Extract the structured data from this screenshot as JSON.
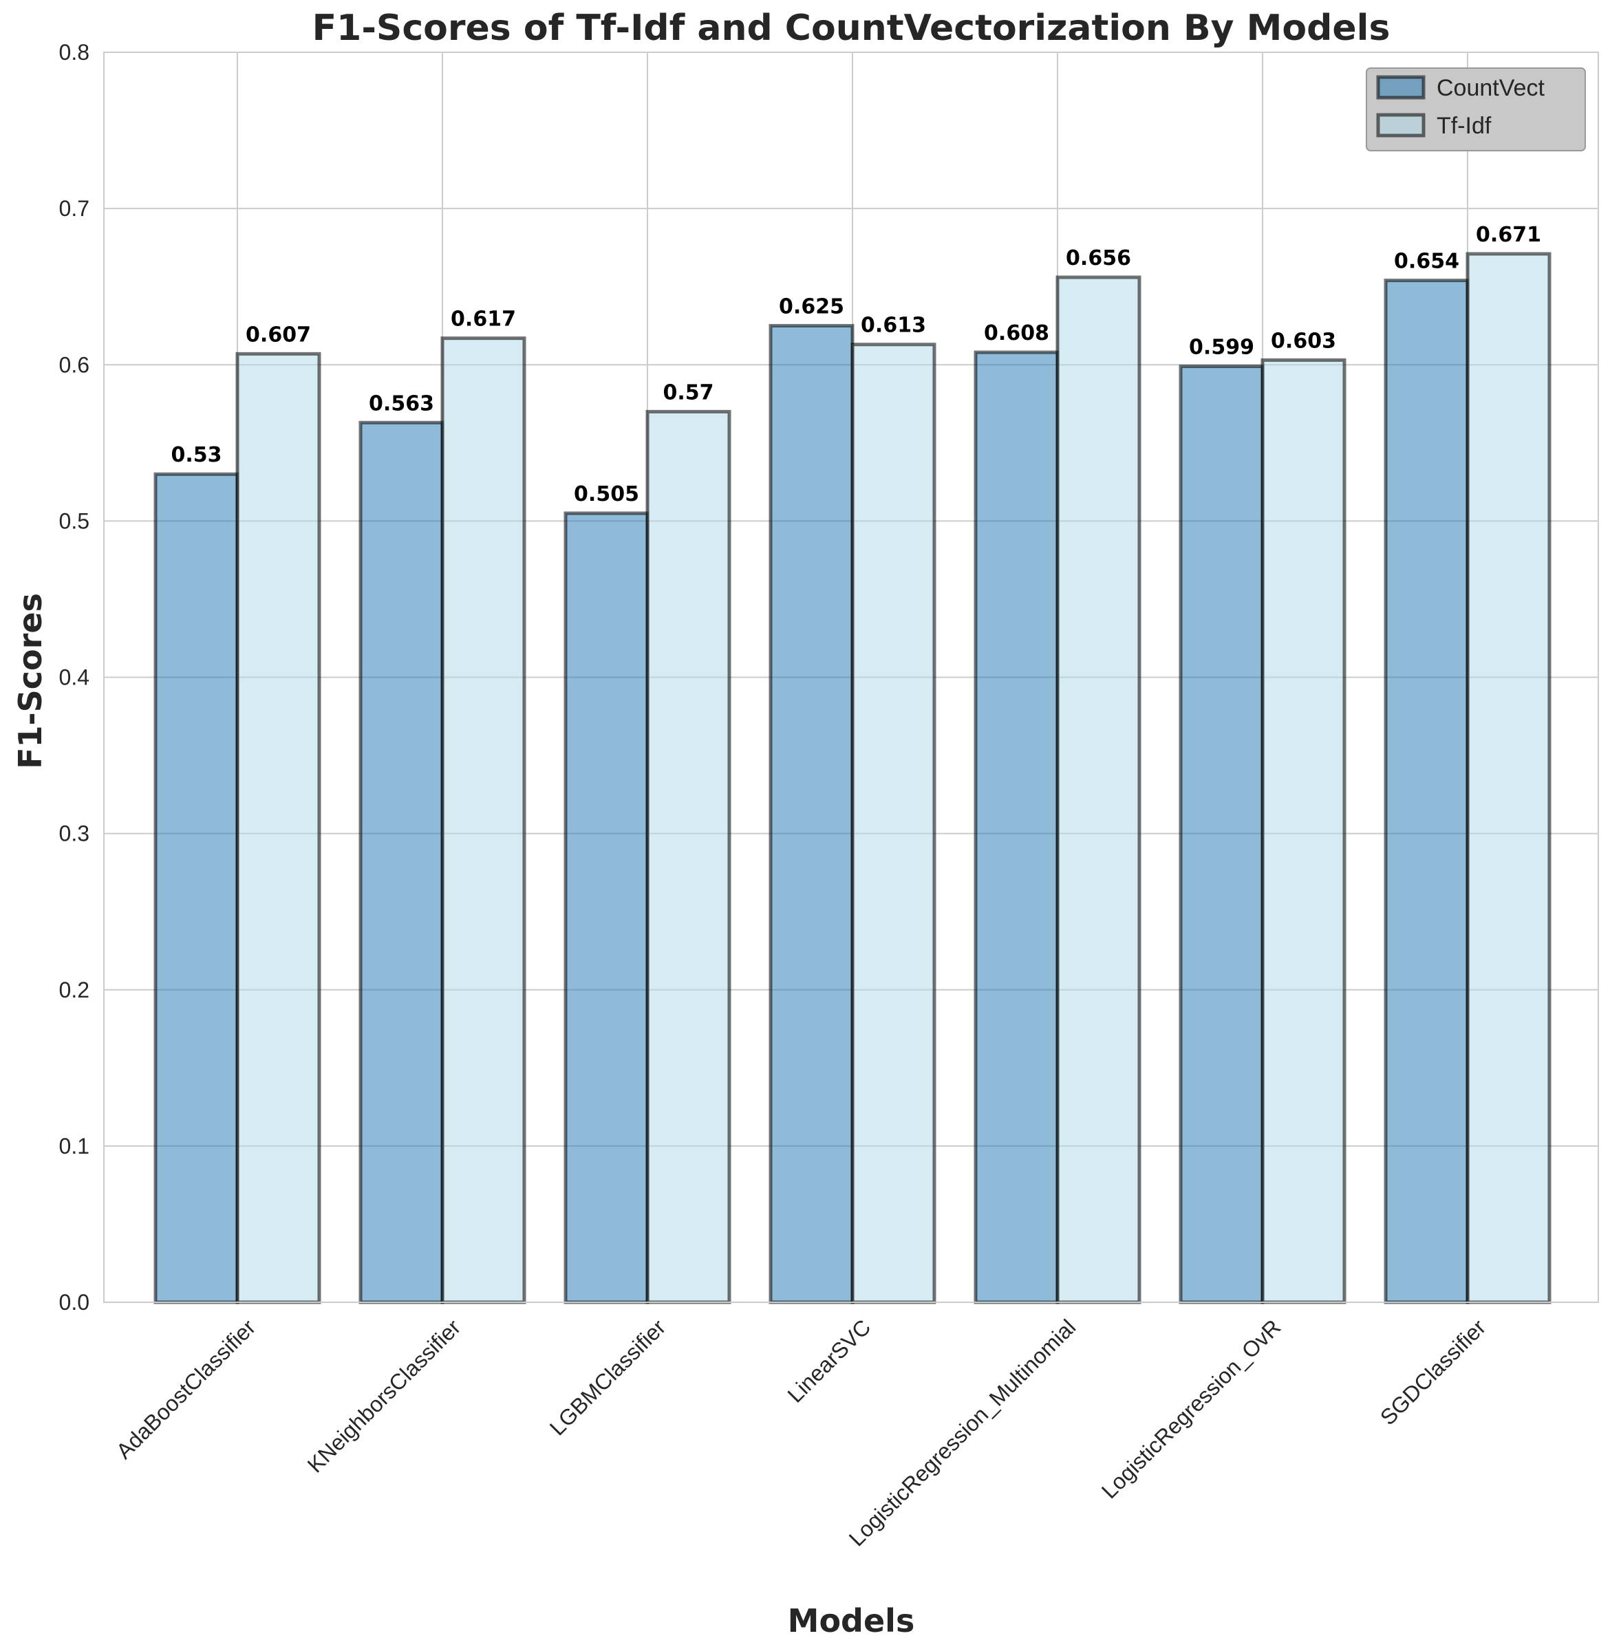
{
  "chart_data": {
    "type": "bar",
    "title": "F1-Scores of Tf-Idf and CountVectorization By Models",
    "xlabel": "Models",
    "ylabel": "F1-Scores",
    "ylim": [
      0,
      0.8
    ],
    "yticks": [
      "0.0",
      "0.1",
      "0.2",
      "0.3",
      "0.4",
      "0.5",
      "0.6",
      "0.7",
      "0.8"
    ],
    "grid": true,
    "legend_position": "top-right",
    "categories": [
      "AdaBoostClassifier",
      "KNeighborsClassifier",
      "LGBMClassifier",
      "LinearSVC",
      "LogisticRegression_Multinomial",
      "LogisticRegression_OvR",
      "SGDClassifier"
    ],
    "series": [
      {
        "name": "CountVect",
        "color": "#1f77b4",
        "values": [
          0.53,
          0.563,
          0.505,
          0.625,
          0.608,
          0.599,
          0.654
        ],
        "labels": [
          "0.53",
          "0.563",
          "0.505",
          "0.625",
          "0.608",
          "0.599",
          "0.654"
        ]
      },
      {
        "name": "Tf-Idf",
        "color": "#add8e6",
        "values": [
          0.607,
          0.617,
          0.57,
          0.613,
          0.656,
          0.603,
          0.671
        ],
        "labels": [
          "0.607",
          "0.617",
          "0.57",
          "0.613",
          "0.656",
          "0.603",
          "0.671"
        ]
      }
    ]
  }
}
